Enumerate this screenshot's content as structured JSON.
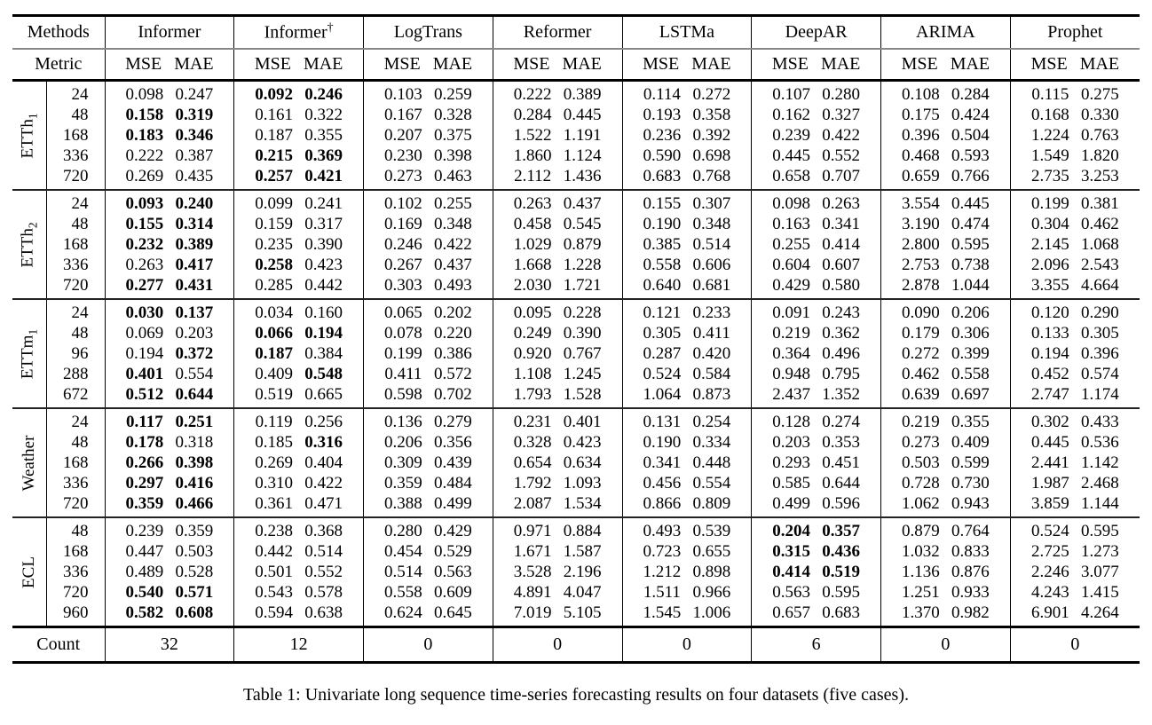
{
  "table": {
    "corner": {
      "methods_label": "Methods",
      "metric_label": "Metric"
    },
    "methods": [
      {
        "name": "Informer",
        "sup": ""
      },
      {
        "name": "Informer",
        "sup": "†"
      },
      {
        "name": "LogTrans",
        "sup": ""
      },
      {
        "name": "Reformer",
        "sup": ""
      },
      {
        "name": "LSTMa",
        "sup": ""
      },
      {
        "name": "DeepAR",
        "sup": ""
      },
      {
        "name": "ARIMA",
        "sup": ""
      },
      {
        "name": "Prophet",
        "sup": ""
      }
    ],
    "metric_names": [
      "MSE",
      "MAE"
    ],
    "groups": [
      {
        "dataset": "ETTh",
        "sub": "1",
        "rows": [
          {
            "horizon": "24",
            "v": [
              "0.098",
              "0.247",
              "0.092",
              "0.246",
              "0.103",
              "0.259",
              "0.222",
              "0.389",
              "0.114",
              "0.272",
              "0.107",
              "0.280",
              "0.108",
              "0.284",
              "0.115",
              "0.275"
            ],
            "b": [
              2,
              3
            ]
          },
          {
            "horizon": "48",
            "v": [
              "0.158",
              "0.319",
              "0.161",
              "0.322",
              "0.167",
              "0.328",
              "0.284",
              "0.445",
              "0.193",
              "0.358",
              "0.162",
              "0.327",
              "0.175",
              "0.424",
              "0.168",
              "0.330"
            ],
            "b": [
              0,
              1
            ]
          },
          {
            "horizon": "168",
            "v": [
              "0.183",
              "0.346",
              "0.187",
              "0.355",
              "0.207",
              "0.375",
              "1.522",
              "1.191",
              "0.236",
              "0.392",
              "0.239",
              "0.422",
              "0.396",
              "0.504",
              "1.224",
              "0.763"
            ],
            "b": [
              0,
              1
            ]
          },
          {
            "horizon": "336",
            "v": [
              "0.222",
              "0.387",
              "0.215",
              "0.369",
              "0.230",
              "0.398",
              "1.860",
              "1.124",
              "0.590",
              "0.698",
              "0.445",
              "0.552",
              "0.468",
              "0.593",
              "1.549",
              "1.820"
            ],
            "b": [
              2,
              3
            ]
          },
          {
            "horizon": "720",
            "v": [
              "0.269",
              "0.435",
              "0.257",
              "0.421",
              "0.273",
              "0.463",
              "2.112",
              "1.436",
              "0.683",
              "0.768",
              "0.658",
              "0.707",
              "0.659",
              "0.766",
              "2.735",
              "3.253"
            ],
            "b": [
              2,
              3
            ]
          }
        ]
      },
      {
        "dataset": "ETTh",
        "sub": "2",
        "rows": [
          {
            "horizon": "24",
            "v": [
              "0.093",
              "0.240",
              "0.099",
              "0.241",
              "0.102",
              "0.255",
              "0.263",
              "0.437",
              "0.155",
              "0.307",
              "0.098",
              "0.263",
              "3.554",
              "0.445",
              "0.199",
              "0.381"
            ],
            "b": [
              0,
              1
            ]
          },
          {
            "horizon": "48",
            "v": [
              "0.155",
              "0.314",
              "0.159",
              "0.317",
              "0.169",
              "0.348",
              "0.458",
              "0.545",
              "0.190",
              "0.348",
              "0.163",
              "0.341",
              "3.190",
              "0.474",
              "0.304",
              "0.462"
            ],
            "b": [
              0,
              1
            ]
          },
          {
            "horizon": "168",
            "v": [
              "0.232",
              "0.389",
              "0.235",
              "0.390",
              "0.246",
              "0.422",
              "1.029",
              "0.879",
              "0.385",
              "0.514",
              "0.255",
              "0.414",
              "2.800",
              "0.595",
              "2.145",
              "1.068"
            ],
            "b": [
              0,
              1
            ]
          },
          {
            "horizon": "336",
            "v": [
              "0.263",
              "0.417",
              "0.258",
              "0.423",
              "0.267",
              "0.437",
              "1.668",
              "1.228",
              "0.558",
              "0.606",
              "0.604",
              "0.607",
              "2.753",
              "0.738",
              "2.096",
              "2.543"
            ],
            "b": [
              1,
              2
            ]
          },
          {
            "horizon": "720",
            "v": [
              "0.277",
              "0.431",
              "0.285",
              "0.442",
              "0.303",
              "0.493",
              "2.030",
              "1.721",
              "0.640",
              "0.681",
              "0.429",
              "0.580",
              "2.878",
              "1.044",
              "3.355",
              "4.664"
            ],
            "b": [
              0,
              1
            ]
          }
        ]
      },
      {
        "dataset": "ETTm",
        "sub": "1",
        "rows": [
          {
            "horizon": "24",
            "v": [
              "0.030",
              "0.137",
              "0.034",
              "0.160",
              "0.065",
              "0.202",
              "0.095",
              "0.228",
              "0.121",
              "0.233",
              "0.091",
              "0.243",
              "0.090",
              "0.206",
              "0.120",
              "0.290"
            ],
            "b": [
              0,
              1
            ]
          },
          {
            "horizon": "48",
            "v": [
              "0.069",
              "0.203",
              "0.066",
              "0.194",
              "0.078",
              "0.220",
              "0.249",
              "0.390",
              "0.305",
              "0.411",
              "0.219",
              "0.362",
              "0.179",
              "0.306",
              "0.133",
              "0.305"
            ],
            "b": [
              2,
              3
            ]
          },
          {
            "horizon": "96",
            "v": [
              "0.194",
              "0.372",
              "0.187",
              "0.384",
              "0.199",
              "0.386",
              "0.920",
              "0.767",
              "0.287",
              "0.420",
              "0.364",
              "0.496",
              "0.272",
              "0.399",
              "0.194",
              "0.396"
            ],
            "b": [
              1,
              2
            ]
          },
          {
            "horizon": "288",
            "v": [
              "0.401",
              "0.554",
              "0.409",
              "0.548",
              "0.411",
              "0.572",
              "1.108",
              "1.245",
              "0.524",
              "0.584",
              "0.948",
              "0.795",
              "0.462",
              "0.558",
              "0.452",
              "0.574"
            ],
            "b": [
              0,
              3
            ]
          },
          {
            "horizon": "672",
            "v": [
              "0.512",
              "0.644",
              "0.519",
              "0.665",
              "0.598",
              "0.702",
              "1.793",
              "1.528",
              "1.064",
              "0.873",
              "2.437",
              "1.352",
              "0.639",
              "0.697",
              "2.747",
              "1.174"
            ],
            "b": [
              0,
              1
            ]
          }
        ]
      },
      {
        "dataset": "Weather",
        "sub": "",
        "rows": [
          {
            "horizon": "24",
            "v": [
              "0.117",
              "0.251",
              "0.119",
              "0.256",
              "0.136",
              "0.279",
              "0.231",
              "0.401",
              "0.131",
              "0.254",
              "0.128",
              "0.274",
              "0.219",
              "0.355",
              "0.302",
              "0.433"
            ],
            "b": [
              0,
              1
            ]
          },
          {
            "horizon": "48",
            "v": [
              "0.178",
              "0.318",
              "0.185",
              "0.316",
              "0.206",
              "0.356",
              "0.328",
              "0.423",
              "0.190",
              "0.334",
              "0.203",
              "0.353",
              "0.273",
              "0.409",
              "0.445",
              "0.536"
            ],
            "b": [
              0,
              3
            ]
          },
          {
            "horizon": "168",
            "v": [
              "0.266",
              "0.398",
              "0.269",
              "0.404",
              "0.309",
              "0.439",
              "0.654",
              "0.634",
              "0.341",
              "0.448",
              "0.293",
              "0.451",
              "0.503",
              "0.599",
              "2.441",
              "1.142"
            ],
            "b": [
              0,
              1
            ]
          },
          {
            "horizon": "336",
            "v": [
              "0.297",
              "0.416",
              "0.310",
              "0.422",
              "0.359",
              "0.484",
              "1.792",
              "1.093",
              "0.456",
              "0.554",
              "0.585",
              "0.644",
              "0.728",
              "0.730",
              "1.987",
              "2.468"
            ],
            "b": [
              0,
              1
            ]
          },
          {
            "horizon": "720",
            "v": [
              "0.359",
              "0.466",
              "0.361",
              "0.471",
              "0.388",
              "0.499",
              "2.087",
              "1.534",
              "0.866",
              "0.809",
              "0.499",
              "0.596",
              "1.062",
              "0.943",
              "3.859",
              "1.144"
            ],
            "b": [
              0,
              1
            ]
          }
        ]
      },
      {
        "dataset": "ECL",
        "sub": "",
        "rows": [
          {
            "horizon": "48",
            "v": [
              "0.239",
              "0.359",
              "0.238",
              "0.368",
              "0.280",
              "0.429",
              "0.971",
              "0.884",
              "0.493",
              "0.539",
              "0.204",
              "0.357",
              "0.879",
              "0.764",
              "0.524",
              "0.595"
            ],
            "b": [
              10,
              11
            ]
          },
          {
            "horizon": "168",
            "v": [
              "0.447",
              "0.503",
              "0.442",
              "0.514",
              "0.454",
              "0.529",
              "1.671",
              "1.587",
              "0.723",
              "0.655",
              "0.315",
              "0.436",
              "1.032",
              "0.833",
              "2.725",
              "1.273"
            ],
            "b": [
              10,
              11
            ]
          },
          {
            "horizon": "336",
            "v": [
              "0.489",
              "0.528",
              "0.501",
              "0.552",
              "0.514",
              "0.563",
              "3.528",
              "2.196",
              "1.212",
              "0.898",
              "0.414",
              "0.519",
              "1.136",
              "0.876",
              "2.246",
              "3.077"
            ],
            "b": [
              10,
              11
            ]
          },
          {
            "horizon": "720",
            "v": [
              "0.540",
              "0.571",
              "0.543",
              "0.578",
              "0.558",
              "0.609",
              "4.891",
              "4.047",
              "1.511",
              "0.966",
              "0.563",
              "0.595",
              "1.251",
              "0.933",
              "4.243",
              "1.415"
            ],
            "b": [
              0,
              1
            ]
          },
          {
            "horizon": "960",
            "v": [
              "0.582",
              "0.608",
              "0.594",
              "0.638",
              "0.624",
              "0.645",
              "7.019",
              "5.105",
              "1.545",
              "1.006",
              "0.657",
              "0.683",
              "1.370",
              "0.982",
              "6.901",
              "4.264"
            ],
            "b": [
              0,
              1
            ]
          }
        ]
      }
    ],
    "count": {
      "label": "Count",
      "values": [
        "32",
        "12",
        "0",
        "0",
        "0",
        "6",
        "0",
        "0"
      ]
    }
  },
  "caption": "Table 1: Univariate long sequence time-series forecasting results on four datasets (five cases)."
}
